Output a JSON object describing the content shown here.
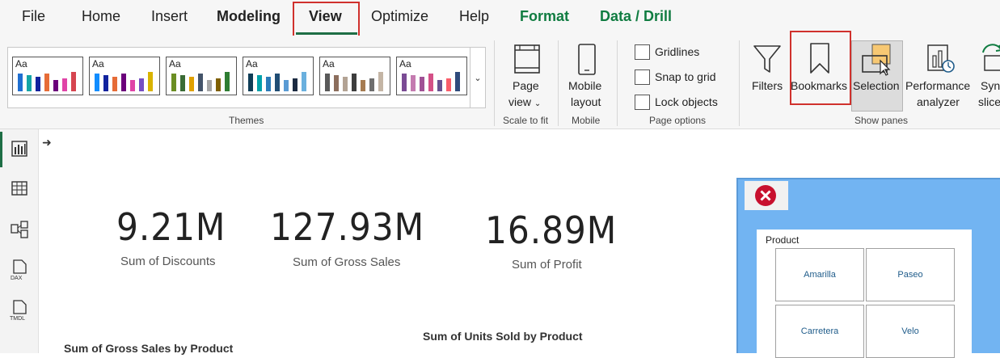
{
  "menu": {
    "file": "File",
    "home": "Home",
    "insert": "Insert",
    "modeling": "Modeling",
    "view": "View",
    "optimize": "Optimize",
    "help": "Help",
    "format": "Format",
    "data_drill": "Data / Drill"
  },
  "ribbon": {
    "themes": {
      "group_label": "Themes",
      "theme_text": "Aa",
      "swatches": [
        [
          "#1f6fd1",
          "#14a5a6",
          "#12239e",
          "#e66c37",
          "#6b007b",
          "#e044a7",
          "#d64550"
        ],
        [
          "#118dff",
          "#12239e",
          "#e66c37",
          "#6b007b",
          "#e044a7",
          "#744ec2",
          "#d9b300"
        ],
        [
          "#6b8e23",
          "#3a6b35",
          "#e0a100",
          "#44546a",
          "#a5a5a5",
          "#7f6000",
          "#2e7d32"
        ],
        [
          "#0f3d57",
          "#00a1ab",
          "#2b7bb9",
          "#204d74",
          "#5a9bd4",
          "#1b2a41",
          "#6ab0de"
        ],
        [
          "#595959",
          "#8c6e5d",
          "#b3a394",
          "#3d3d3d",
          "#a67c52",
          "#6e6e6e",
          "#c4b5a5"
        ],
        [
          "#7a4b94",
          "#c47bb0",
          "#a05195",
          "#d45087",
          "#665191",
          "#f95d6a",
          "#2f4b7c"
        ]
      ]
    },
    "page_view": {
      "line1": "Page",
      "line2": "view",
      "group_label": "Scale to fit"
    },
    "mobile": {
      "line1": "Mobile",
      "line2": "layout",
      "group_label": "Mobile"
    },
    "page_options": {
      "gridlines": "Gridlines",
      "snap": "Snap to grid",
      "lock": "Lock objects",
      "group_label": "Page options"
    },
    "show_panes": {
      "filters": "Filters",
      "bookmarks": "Bookmarks",
      "selection": "Selection",
      "performance_line1": "Performance",
      "performance_line2": "analyzer",
      "sync_line1": "Sync",
      "sync_line2": "slicers",
      "group_label": "Show panes"
    }
  },
  "canvas": {
    "kpis": [
      {
        "value": "9.21M",
        "label": "Sum of Discounts"
      },
      {
        "value": "127.93M",
        "label": "Sum of Gross Sales"
      },
      {
        "value": "16.89M",
        "label": "Sum of Profit"
      }
    ],
    "chart_titles": {
      "gross_sales": "Sum of Gross Sales by Product",
      "units_sold": "Sum of Units Sold by Product"
    }
  },
  "slicer": {
    "title": "Product",
    "items": [
      "Amarilla",
      "Paseo",
      "Carretera",
      "Velo"
    ]
  },
  "colors": {
    "accent_green": "#1e6e45",
    "highlight_red": "#d0312d",
    "slicer_bg": "#72b4f2"
  }
}
